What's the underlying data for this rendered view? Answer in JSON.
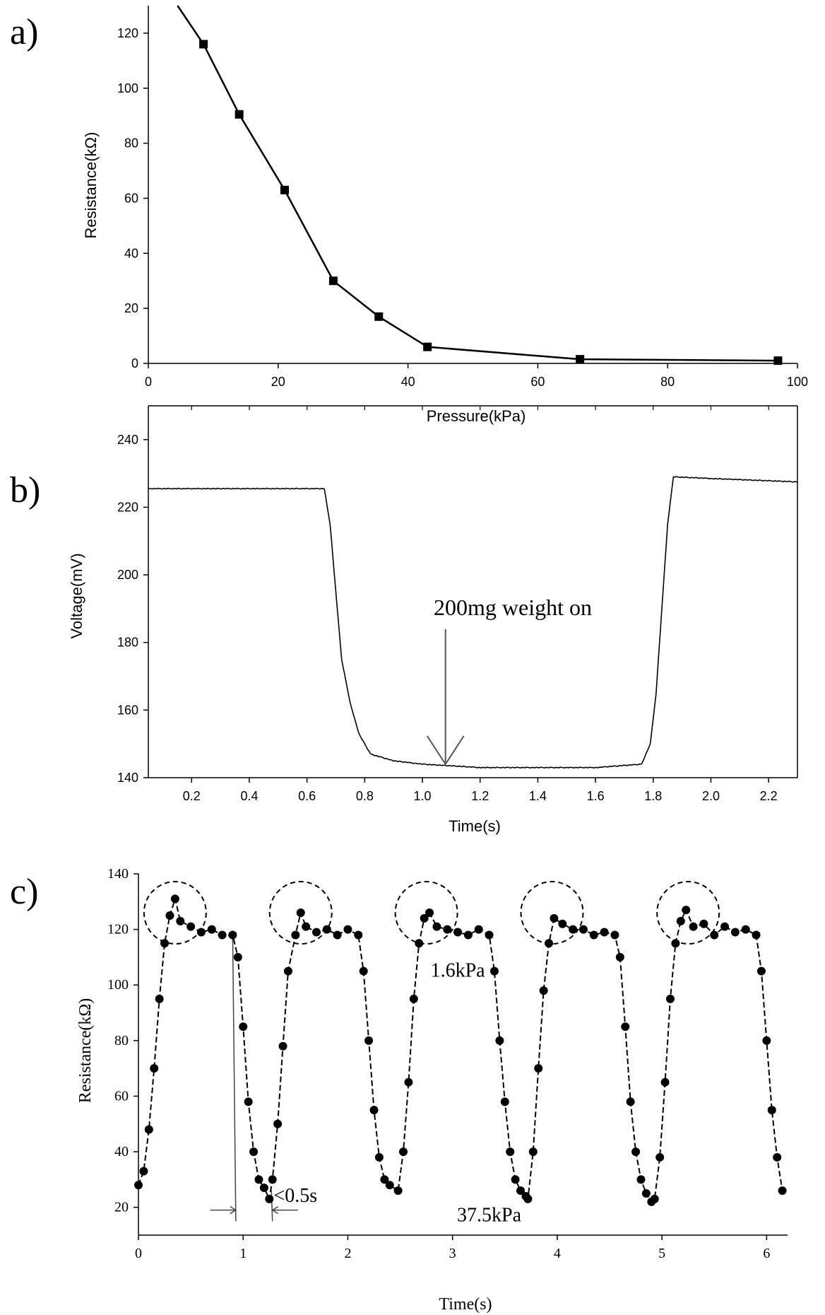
{
  "chart_data": [
    {
      "type": "line",
      "panel_label": "a)",
      "xlabel": "Pressure(kPa)",
      "ylabel": "Resistance(kΩ)",
      "xlim": [
        0,
        100
      ],
      "ylim": [
        0,
        130
      ],
      "xticks": [
        "0",
        "20",
        "40",
        "60",
        "80",
        "100"
      ],
      "yticks": [
        "0",
        "20",
        "40",
        "60",
        "80",
        "100",
        "120"
      ],
      "series": [
        {
          "name": "Resistance",
          "marker": "square",
          "x": [
            4.5,
            8.5,
            14,
            21,
            28.5,
            35.5,
            43,
            66.5,
            97
          ],
          "y": [
            130,
            116,
            90.5,
            63,
            30,
            17,
            6,
            1.5,
            1
          ]
        }
      ]
    },
    {
      "type": "line",
      "panel_label": "b)",
      "xlabel": "Time(s)",
      "ylabel": "Voltage(mV)",
      "xlim": [
        0.05,
        2.3
      ],
      "ylim": [
        140,
        250
      ],
      "xticks": [
        "0.2",
        "0.4",
        "0.6",
        "0.8",
        "1.0",
        "1.2",
        "1.4",
        "1.6",
        "1.8",
        "2.0",
        "2.2"
      ],
      "yticks": [
        "140",
        "160",
        "180",
        "200",
        "220",
        "240"
      ],
      "annotation": {
        "text": "200mg  weight on",
        "target": [
          1.08,
          144
        ]
      },
      "series": [
        {
          "name": "Voltage",
          "x": [
            0.05,
            0.66,
            0.68,
            0.7,
            0.72,
            0.75,
            0.78,
            0.82,
            0.9,
            1.0,
            1.2,
            1.4,
            1.6,
            1.76,
            1.79,
            1.81,
            1.83,
            1.85,
            1.87,
            2.0,
            2.3
          ],
          "y": [
            225.5,
            225.5,
            215,
            195,
            175,
            162,
            153,
            147,
            145,
            144,
            143,
            143,
            143,
            144,
            150,
            165,
            190,
            215,
            229,
            228.5,
            227.5
          ]
        }
      ]
    },
    {
      "type": "scatter",
      "panel_label": "c)",
      "xlabel": "Time(s)",
      "ylabel": "Resistance(kΩ)",
      "xlim": [
        0,
        6.2
      ],
      "ylim": [
        10,
        140
      ],
      "xticks": [
        "0",
        "1",
        "2",
        "3",
        "4",
        "5",
        "6"
      ],
      "yticks": [
        "20",
        "40",
        "60",
        "80",
        "100",
        "120",
        "140"
      ],
      "annotations": [
        {
          "text": "1.6kPa",
          "x": 3.05,
          "y": 103
        },
        {
          "text": "37.5kPa",
          "x": 3.35,
          "y": 15
        },
        {
          "text": "<0.5s",
          "x": 1.5,
          "y": 22
        }
      ],
      "response_time_marks": [
        0.93,
        1.28
      ],
      "peak_circles_x": [
        0.35,
        1.55,
        2.75,
        3.95,
        5.25
      ],
      "series": [
        {
          "name": "Resistance",
          "x": [
            0.0,
            0.05,
            0.1,
            0.15,
            0.2,
            0.25,
            0.3,
            0.35,
            0.4,
            0.5,
            0.6,
            0.7,
            0.8,
            0.9,
            0.95,
            1.0,
            1.05,
            1.1,
            1.15,
            1.2,
            1.25,
            1.28,
            1.33,
            1.38,
            1.43,
            1.5,
            1.55,
            1.6,
            1.7,
            1.8,
            1.9,
            2.0,
            2.1,
            2.15,
            2.2,
            2.25,
            2.3,
            2.35,
            2.4,
            2.48,
            2.53,
            2.58,
            2.63,
            2.68,
            2.73,
            2.78,
            2.85,
            2.95,
            3.05,
            3.15,
            3.25,
            3.35,
            3.4,
            3.45,
            3.5,
            3.55,
            3.6,
            3.65,
            3.7,
            3.72,
            3.77,
            3.82,
            3.87,
            3.92,
            3.97,
            4.05,
            4.15,
            4.25,
            4.35,
            4.45,
            4.55,
            4.6,
            4.65,
            4.7,
            4.75,
            4.8,
            4.85,
            4.9,
            4.93,
            4.98,
            5.03,
            5.08,
            5.13,
            5.18,
            5.23,
            5.3,
            5.4,
            5.5,
            5.6,
            5.7,
            5.8,
            5.9,
            5.95,
            6.0,
            6.05,
            6.1,
            6.15
          ],
          "y": [
            28,
            33,
            48,
            70,
            95,
            115,
            125,
            131,
            123,
            121,
            119,
            120,
            118,
            118,
            110,
            85,
            58,
            40,
            30,
            27,
            23,
            30,
            50,
            78,
            105,
            118,
            126,
            121,
            119,
            120,
            118,
            120,
            118,
            105,
            80,
            55,
            38,
            30,
            28,
            26,
            40,
            65,
            95,
            115,
            124,
            126,
            121,
            120,
            119,
            118,
            120,
            118,
            105,
            80,
            58,
            40,
            30,
            26,
            24,
            23,
            40,
            70,
            98,
            115,
            124,
            122,
            120,
            120,
            118,
            119,
            118,
            110,
            85,
            58,
            40,
            30,
            25,
            22,
            23,
            38,
            65,
            95,
            115,
            123,
            127,
            121,
            122,
            118,
            121,
            119,
            120,
            118,
            105,
            80,
            55,
            38,
            26
          ]
        }
      ]
    }
  ]
}
